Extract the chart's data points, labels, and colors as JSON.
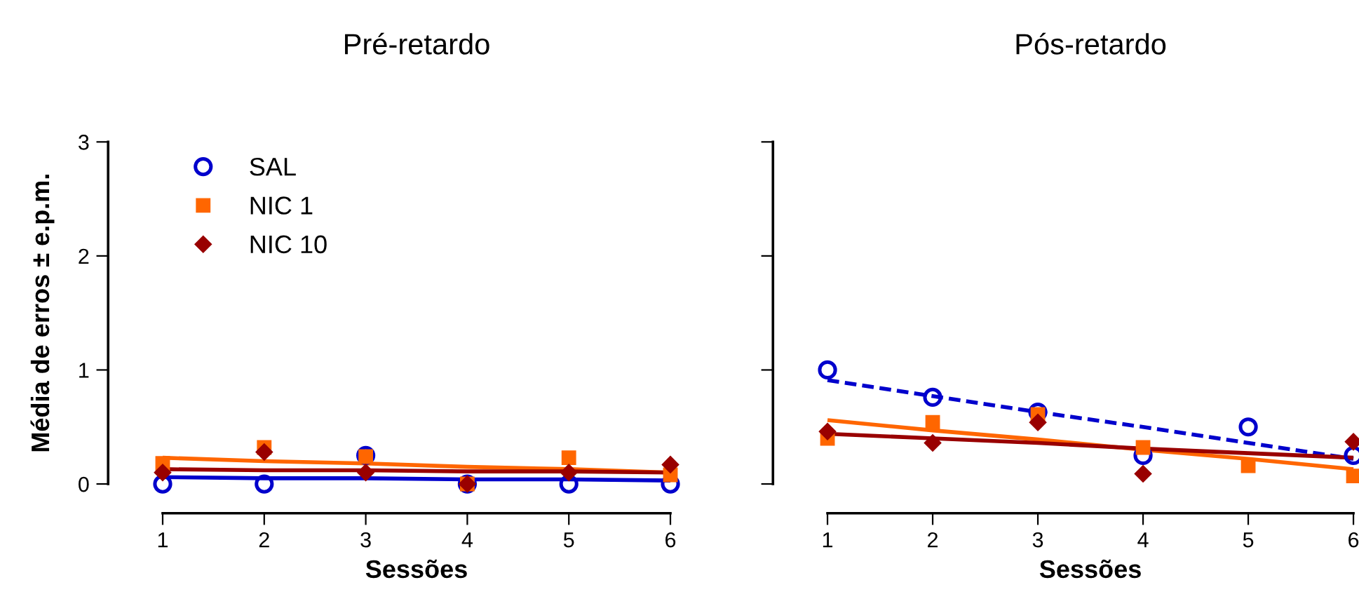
{
  "chart_data": [
    {
      "type": "scatter",
      "title": "Pré-retardo",
      "xlabel": "Sessões",
      "ylabel": "Média de erros ± e.p.m.",
      "x": [
        1,
        2,
        3,
        4,
        5,
        6
      ],
      "xlim": [
        1,
        6
      ],
      "xticks": [
        1,
        2,
        3,
        4,
        5,
        6
      ],
      "ylim": [
        0,
        3
      ],
      "yticks": [
        0,
        1,
        2,
        3
      ],
      "grid": false,
      "legend": "top left",
      "series": [
        {
          "name": "SAL",
          "color": "#0000cc",
          "marker": "circle",
          "values": [
            0,
            0,
            0.25,
            0,
            0,
            0
          ]
        },
        {
          "name": "NIC 1",
          "color": "#ff6600",
          "marker": "square",
          "values": [
            0.18,
            0.32,
            0.24,
            0,
            0.23,
            0.08
          ]
        },
        {
          "name": "NIC 10",
          "color": "#990000",
          "marker": "diamond",
          "values": [
            0.1,
            0.28,
            0.1,
            0,
            0.1,
            0.17
          ]
        },
        {
          "type": "line",
          "color": "#0000cc",
          "marker": "none",
          "line_style": "solid",
          "values": [
            0.06,
            0.05,
            0.05,
            0.04,
            0.04,
            0.03
          ]
        },
        {
          "type": "line",
          "color": "#ff6600",
          "marker": "none",
          "line_style": "solid",
          "values": [
            0.23,
            0.2,
            0.18,
            0.15,
            0.13,
            0.1
          ]
        },
        {
          "type": "line",
          "color": "#990000",
          "marker": "none",
          "line_style": "solid",
          "values": [
            0.13,
            0.12,
            0.12,
            0.11,
            0.11,
            0.1
          ]
        }
      ]
    },
    {
      "type": "scatter",
      "title": "Pós-retardo",
      "xlabel": "Sessões",
      "x": [
        1,
        2,
        3,
        4,
        5,
        6
      ],
      "xlim": [
        1,
        6
      ],
      "xticks": [
        1,
        2,
        3,
        4,
        5,
        6
      ],
      "ylim": [
        0,
        3
      ],
      "yticks": [
        0,
        1,
        2,
        3
      ],
      "tick_labels": "x",
      "grid": false,
      "series": [
        {
          "color": "#0000cc",
          "marker": "circle",
          "values": [
            1.0,
            0.76,
            0.63,
            0.25,
            0.5,
            0.25
          ]
        },
        {
          "color": "#ff6600",
          "marker": "square",
          "values": [
            0.4,
            0.54,
            0.61,
            0.32,
            0.16,
            0.07
          ]
        },
        {
          "color": "#990000",
          "marker": "diamond",
          "values": [
            0.46,
            0.36,
            0.54,
            0.09,
            null,
            0.37
          ]
        },
        {
          "type": "line",
          "color": "#0000cc",
          "marker": "none",
          "line_style": "dashed",
          "values": [
            0.91,
            0.77,
            0.63,
            0.5,
            0.36,
            0.22
          ]
        },
        {
          "type": "line",
          "color": "#ff6600",
          "marker": "none",
          "line_style": "solid",
          "values": [
            0.56,
            0.47,
            0.39,
            0.3,
            0.22,
            0.13
          ]
        },
        {
          "type": "line",
          "color": "#990000",
          "marker": "none",
          "line_style": "solid",
          "values": [
            0.44,
            0.4,
            0.36,
            0.31,
            0.27,
            0.23
          ]
        }
      ]
    }
  ]
}
